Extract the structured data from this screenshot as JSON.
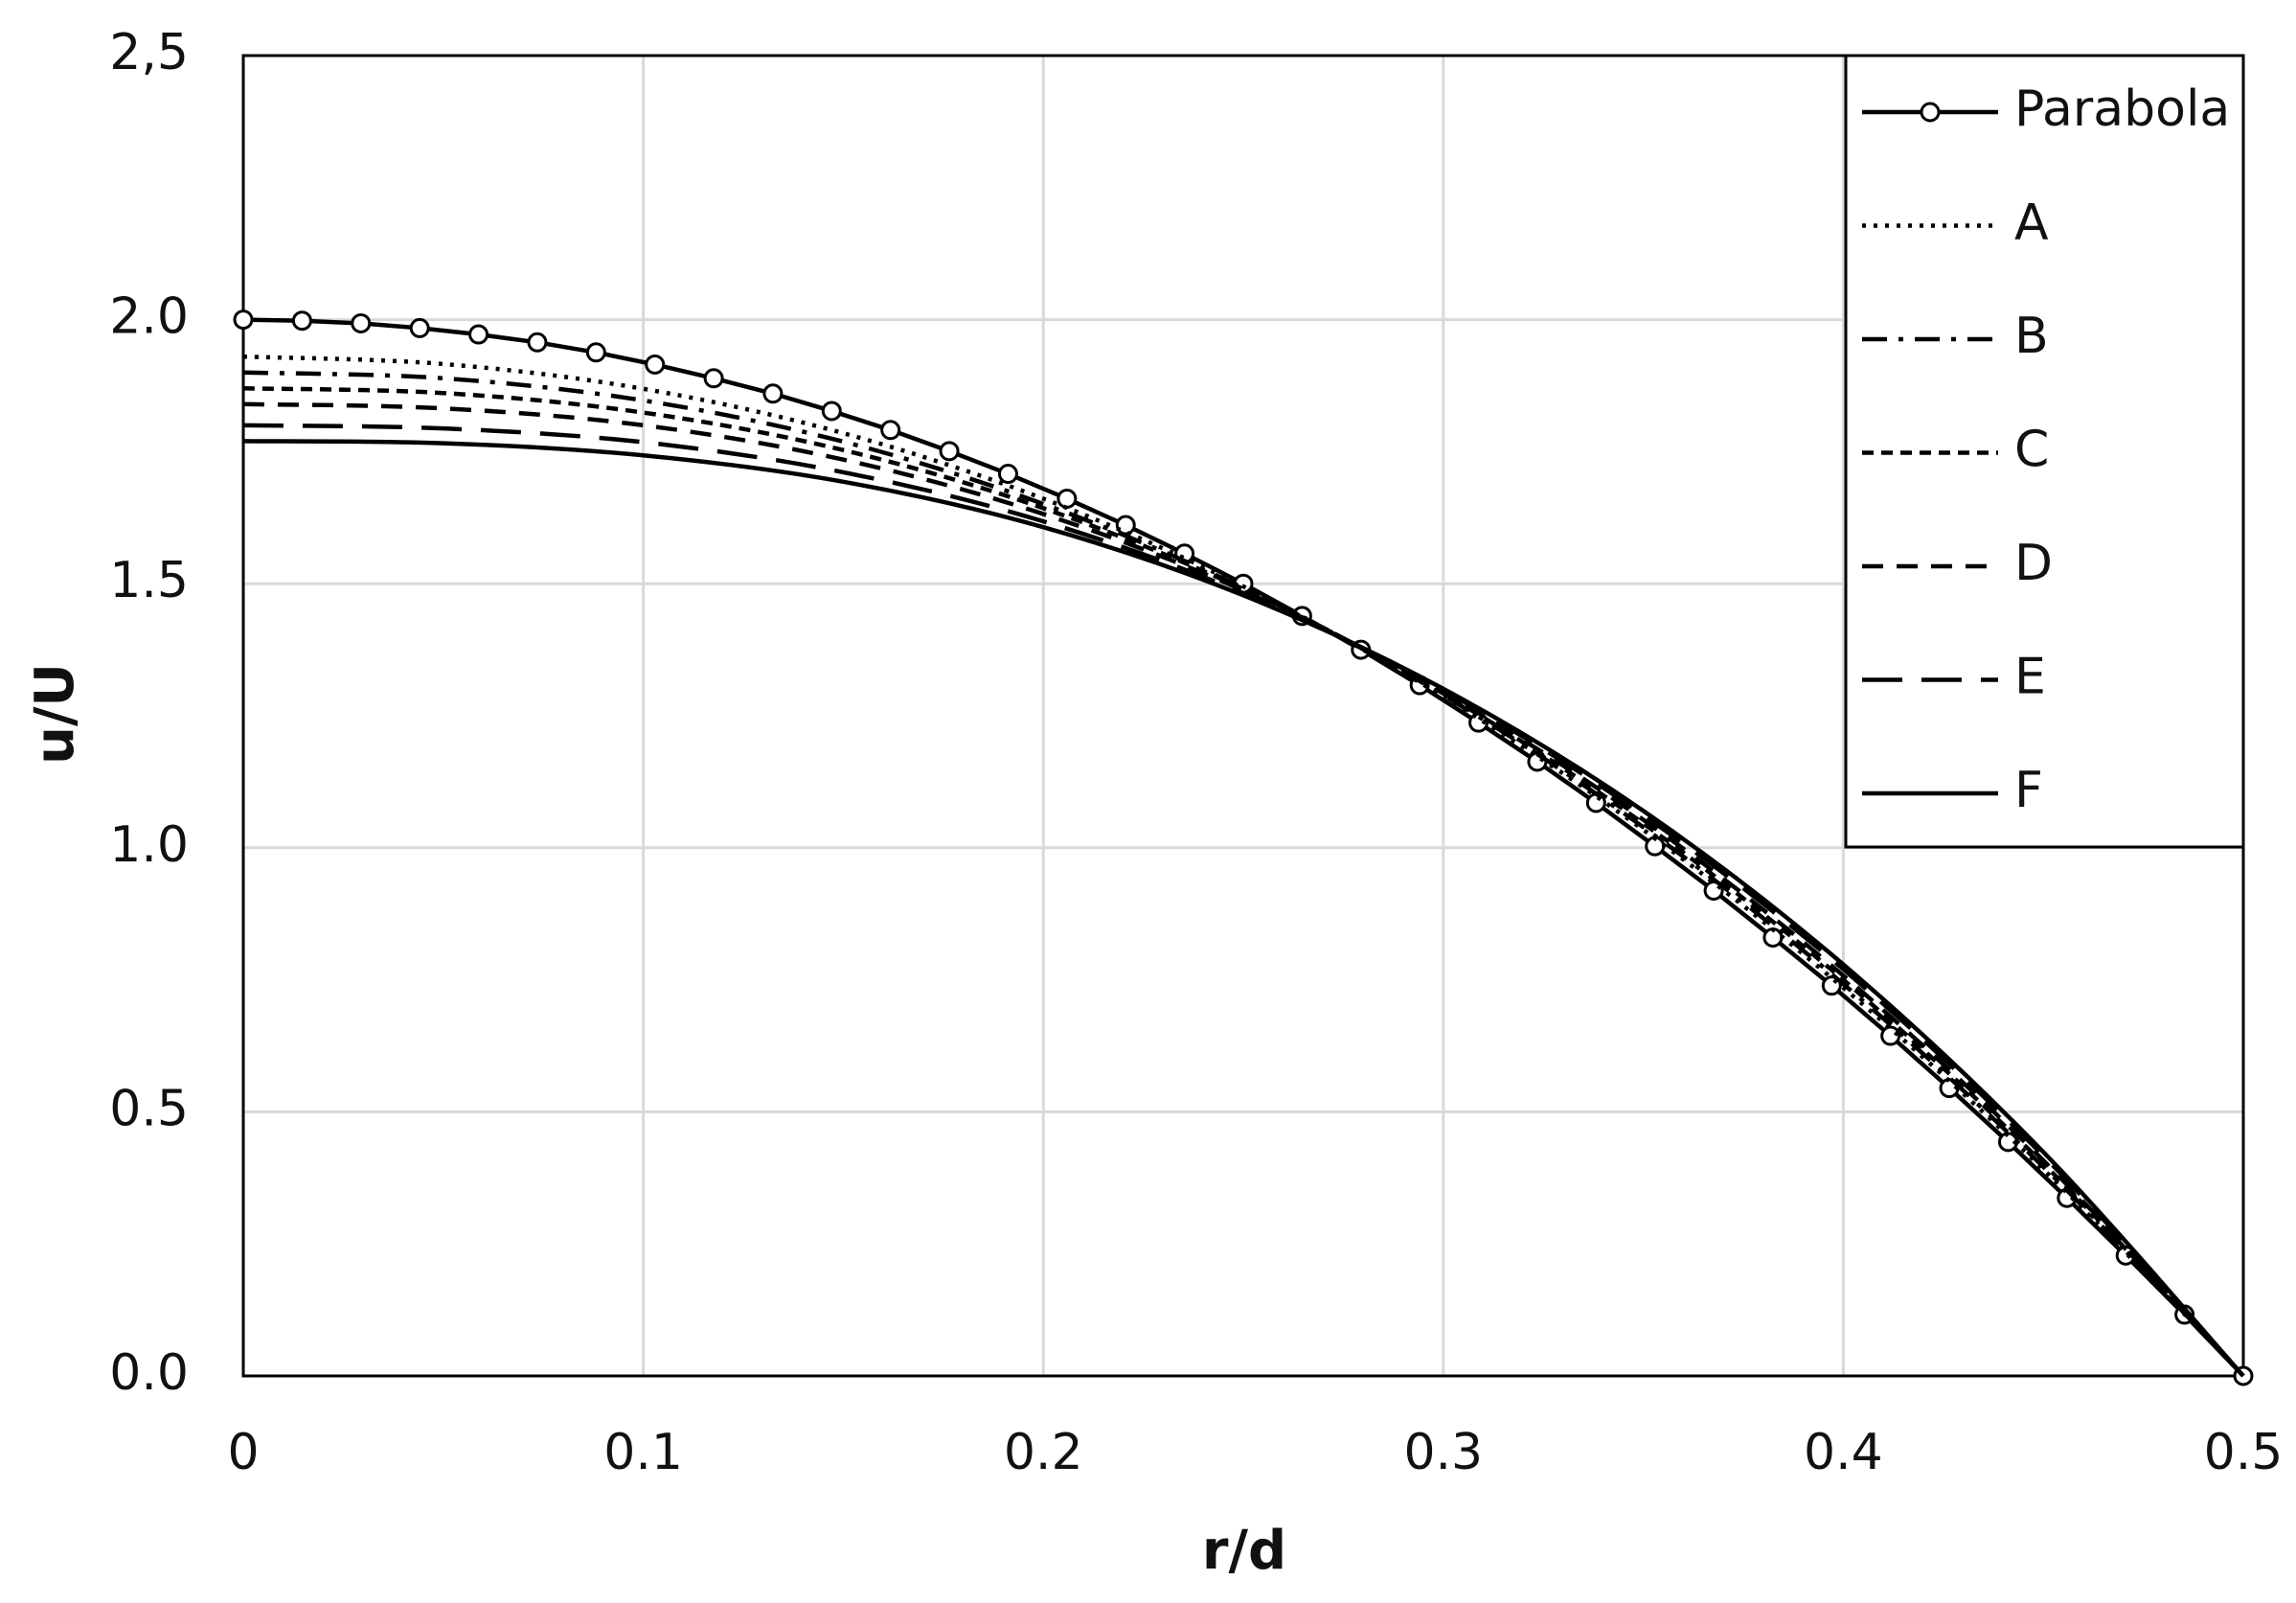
{
  "chart_data": {
    "type": "line",
    "x_label": "r/d",
    "y_label": "u/U",
    "xlim": [
      0,
      0.5
    ],
    "ylim": [
      0,
      2.5
    ],
    "xticks": [
      0,
      0.1,
      0.2,
      0.3,
      0.4,
      0.5
    ],
    "yticks": [
      {
        "value": 0,
        "label": "0.0"
      },
      0.5,
      {
        "value": 1,
        "label": "1.0"
      },
      1.5,
      {
        "value": 2,
        "label": "2.0"
      },
      {
        "value": 2.5,
        "label": "2,5"
      }
    ],
    "grid": true,
    "legend": "upper right",
    "series": [
      {
        "name": "Parabola",
        "color": "#000000",
        "dash": "solid",
        "marker": "circle",
        "x": [
          0,
          0.0147,
          0.0294,
          0.0441,
          0.0588,
          0.0735,
          0.0882,
          0.1029,
          0.1176,
          0.1324,
          0.1471,
          0.1618,
          0.1765,
          0.1912,
          0.2059,
          0.2206,
          0.2353,
          0.25,
          0.2647,
          0.2794,
          0.2941,
          0.3088,
          0.3235,
          0.3382,
          0.3529,
          0.3676,
          0.3824,
          0.3971,
          0.4118,
          0.4265,
          0.4412,
          0.4559,
          0.4706,
          0.4853,
          0.5
        ],
        "values": [
          2,
          1.998,
          1.993,
          1.984,
          1.972,
          1.957,
          1.938,
          1.915,
          1.889,
          1.86,
          1.827,
          1.791,
          1.751,
          1.708,
          1.661,
          1.611,
          1.557,
          1.5,
          1.439,
          1.375,
          1.308,
          1.237,
          1.163,
          1.085,
          1.003,
          0.919,
          0.83,
          0.739,
          0.644,
          0.545,
          0.443,
          0.337,
          0.228,
          0.116,
          0
        ]
      },
      {
        "name": "A",
        "color": "#000000",
        "dash": "dotted",
        "x": [
          0,
          0.05,
          0.1,
          0.15,
          0.2,
          0.25,
          0.3,
          0.35,
          0.4,
          0.45,
          0.5
        ],
        "values": [
          1.93,
          1.916,
          1.869,
          1.785,
          1.661,
          1.495,
          1.286,
          1.034,
          0.735,
          0.391,
          0
        ]
      },
      {
        "name": "B",
        "color": "#000000",
        "dash": "dash-dot",
        "x": [
          0,
          0.05,
          0.1,
          0.15,
          0.2,
          0.25,
          0.3,
          0.35,
          0.4,
          0.45,
          0.5
        ],
        "values": [
          1.9,
          1.889,
          1.847,
          1.769,
          1.651,
          1.492,
          1.289,
          1.039,
          0.742,
          0.396,
          0
        ]
      },
      {
        "name": "C",
        "color": "#000000",
        "dash": "short-dash",
        "x": [
          0,
          0.05,
          0.1,
          0.15,
          0.2,
          0.25,
          0.3,
          0.35,
          0.4,
          0.45,
          0.5
        ],
        "values": [
          1.87,
          1.861,
          1.824,
          1.753,
          1.643,
          1.49,
          1.292,
          1.046,
          0.75,
          0.402,
          0
        ]
      },
      {
        "name": "D",
        "color": "#000000",
        "dash": "dash",
        "x": [
          0,
          0.05,
          0.1,
          0.15,
          0.2,
          0.25,
          0.3,
          0.35,
          0.4,
          0.45,
          0.5
        ],
        "values": [
          1.84,
          1.832,
          1.8,
          1.735,
          1.632,
          1.487,
          1.294,
          1.053,
          0.758,
          0.408,
          0
        ]
      },
      {
        "name": "E",
        "color": "#000000",
        "dash": "long-dash",
        "x": [
          0,
          0.05,
          0.1,
          0.15,
          0.2,
          0.25,
          0.3,
          0.35,
          0.4,
          0.45,
          0.5
        ],
        "values": [
          1.8,
          1.794,
          1.768,
          1.711,
          1.618,
          1.482,
          1.298,
          1.062,
          0.77,
          0.417,
          0
        ]
      },
      {
        "name": "F",
        "color": "#000000",
        "dash": "solid",
        "x": [
          0,
          0.05,
          0.1,
          0.15,
          0.2,
          0.25,
          0.3,
          0.35,
          0.4,
          0.45,
          0.5
        ],
        "values": [
          1.77,
          1.766,
          1.743,
          1.693,
          1.607,
          1.478,
          1.301,
          1.07,
          0.779,
          0.424,
          0
        ]
      }
    ]
  }
}
